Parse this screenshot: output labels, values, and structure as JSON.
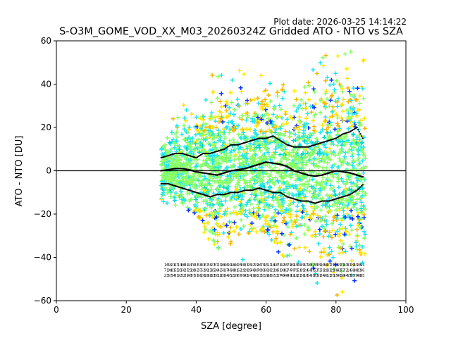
{
  "chart_data": {
    "type": "scatter",
    "plot_date": "Plot date: 2026-03-25 14:14:22",
    "title": "S-O3M_GOME_VOD_XX_M03_20260324Z Gridded ATO - NTO vs SZA",
    "xlabel": "SZA [degree]",
    "ylabel": "ATO - NTO [DU]",
    "xlim": [
      0,
      100
    ],
    "ylim": [
      -60,
      60
    ],
    "xticks": [
      "0",
      "20",
      "40",
      "60",
      "80",
      "100"
    ],
    "yticks": [
      "60",
      "40",
      "20",
      "0",
      "−20",
      "−40",
      "−60"
    ],
    "zero_line": 0,
    "marker": "+",
    "colors": {
      "blue": "#0033ff",
      "cyan": "#22e5ee",
      "green": "#88ff66",
      "yellow": "#ffe600",
      "orange": "#f5b700",
      "teal": "#00d5c5"
    },
    "scatter_envelope": [
      {
        "x": 30,
        "upper": 12,
        "lower": -18
      },
      {
        "x": 35,
        "upper": 30,
        "lower": -16
      },
      {
        "x": 40,
        "upper": 35,
        "lower": -22
      },
      {
        "x": 45,
        "upper": 50,
        "lower": -40
      },
      {
        "x": 50,
        "upper": 45,
        "lower": -35
      },
      {
        "x": 53,
        "upper": 48,
        "lower": -44
      },
      {
        "x": 55,
        "upper": 55,
        "lower": -30
      },
      {
        "x": 60,
        "upper": 55,
        "lower": -28
      },
      {
        "x": 65,
        "upper": 45,
        "lower": -42
      },
      {
        "x": 70,
        "upper": 35,
        "lower": -45
      },
      {
        "x": 75,
        "upper": 55,
        "lower": -55
      },
      {
        "x": 80,
        "upper": 55,
        "lower": -60
      },
      {
        "x": 85,
        "upper": 55,
        "lower": -60
      },
      {
        "x": 88,
        "upper": 58,
        "lower": -52
      }
    ],
    "mean_line": {
      "x": [
        30,
        32,
        34,
        36,
        38,
        40,
        42,
        44,
        46,
        48,
        50,
        52,
        54,
        56,
        58,
        60,
        62,
        64,
        66,
        68,
        70,
        72,
        74,
        76,
        78,
        80,
        82,
        84,
        86,
        88
      ],
      "y": [
        0,
        0.5,
        1,
        1,
        0.5,
        -0.5,
        -1,
        -1.5,
        -2,
        -1,
        0,
        0.5,
        1,
        2,
        3,
        4,
        3.5,
        3,
        2,
        0,
        -1,
        -2,
        -2.5,
        -2,
        -1,
        0,
        -0.5,
        -1,
        -2,
        -3
      ]
    },
    "upper_std_line": {
      "x": [
        30,
        32,
        34,
        36,
        38,
        40,
        42,
        44,
        46,
        48,
        50,
        52,
        54,
        56,
        58,
        60,
        62,
        64,
        66,
        68,
        70,
        72,
        74,
        76,
        78,
        80,
        82,
        84,
        86,
        88
      ],
      "y": [
        6,
        7,
        8,
        8,
        7,
        6,
        8,
        8,
        9,
        10,
        12,
        12,
        13,
        14,
        15,
        15,
        16,
        14,
        12,
        11,
        11,
        11,
        12,
        13,
        14,
        15,
        17,
        18,
        20,
        14
      ]
    },
    "lower_std_line": {
      "x": [
        30,
        32,
        34,
        36,
        38,
        40,
        42,
        44,
        46,
        48,
        50,
        52,
        54,
        56,
        58,
        60,
        62,
        64,
        66,
        68,
        70,
        72,
        74,
        76,
        78,
        80,
        82,
        84,
        86,
        88
      ],
      "y": [
        -6,
        -6,
        -7,
        -8,
        -9,
        -10,
        -11,
        -12,
        -11,
        -11,
        -10,
        -10,
        -9,
        -9,
        -8,
        -9,
        -10,
        -10,
        -12,
        -13,
        -14,
        -14,
        -15,
        -14,
        -14,
        -13,
        -12,
        -11,
        -9,
        -6
      ]
    }
  }
}
